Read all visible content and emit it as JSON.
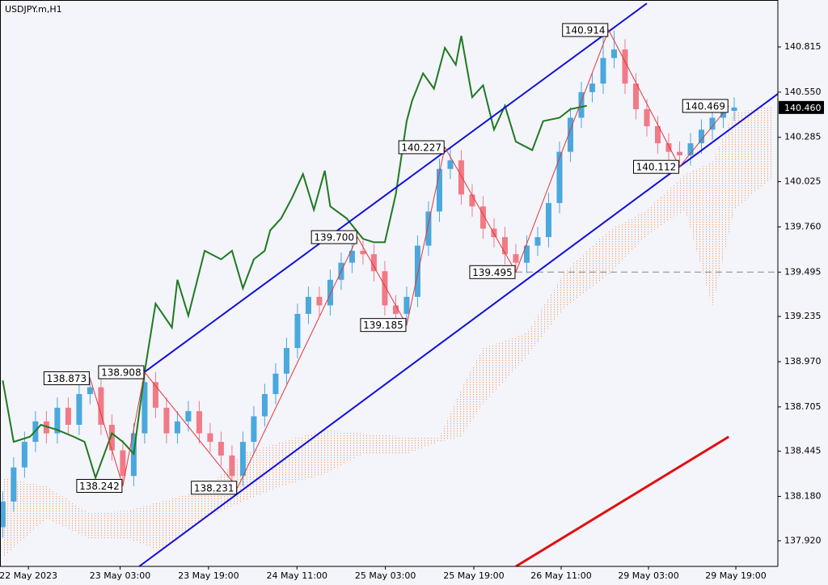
{
  "chart_data": {
    "type": "candlestick",
    "title": "USDJPY.m,H1",
    "up_color": "#4aa8dc",
    "down_color": "#f07a86",
    "xlim": [
      -0.5,
      142
    ],
    "ylim": [
      137.77,
      141.09
    ],
    "yticks": [
      140.815,
      {
        "value": 140.55,
        "label": "140.550"
      },
      140.285,
      140.025,
      {
        "value": 139.76,
        "label": "139.760"
      },
      139.495,
      139.235,
      {
        "value": 138.97,
        "label": "138.970"
      },
      138.705,
      138.445,
      {
        "value": 138.18,
        "label": "138.180"
      },
      {
        "value": 137.92,
        "label": "137.920"
      }
    ],
    "xticks": [
      {
        "value": 4.7,
        "label": "22 May 2023"
      },
      {
        "value": 21.5,
        "label": "23 May 03:00"
      },
      {
        "value": 37.7,
        "label": "23 May 19:00"
      },
      {
        "value": 53.9,
        "label": "24 May 11:00"
      },
      {
        "value": 70.1,
        "label": "25 May 03:00"
      },
      {
        "value": 86.3,
        "label": "25 May 19:00"
      },
      {
        "value": 102.3,
        "label": "26 May 11:00"
      },
      {
        "value": 118.3,
        "label": "29 May 03:00"
      },
      {
        "value": 134.3,
        "label": "29 May 19:00"
      }
    ],
    "x": [
      0,
      2,
      4,
      6,
      8,
      10,
      12,
      14,
      16,
      18,
      20,
      22,
      24,
      26,
      28,
      30,
      32,
      34,
      36,
      38,
      40,
      42,
      44,
      46,
      48,
      50,
      52,
      54,
      56,
      58,
      60,
      62,
      64,
      66,
      68,
      70,
      72,
      74,
      76,
      78,
      80,
      82,
      84,
      86,
      88,
      90,
      92,
      94,
      96,
      98,
      100,
      102,
      104,
      106,
      108,
      110,
      112,
      114,
      116,
      118,
      120,
      122,
      124,
      126,
      128,
      130,
      132,
      134
    ],
    "open": [
      138.0,
      138.15,
      138.35,
      138.5,
      138.62,
      138.55,
      138.7,
      138.6,
      138.78,
      138.82,
      138.6,
      138.45,
      138.3,
      138.55,
      138.85,
      138.7,
      138.55,
      138.62,
      138.68,
      138.55,
      138.5,
      138.42,
      138.3,
      138.5,
      138.65,
      138.78,
      138.9,
      139.05,
      139.25,
      139.35,
      139.3,
      139.45,
      139.55,
      139.62,
      139.6,
      139.5,
      139.3,
      139.25,
      139.35,
      139.65,
      139.85,
      140.1,
      140.15,
      139.95,
      139.88,
      139.75,
      139.7,
      139.6,
      139.55,
      139.65,
      139.7,
      139.9,
      140.2,
      140.4,
      140.55,
      140.6,
      140.75,
      140.8,
      140.6,
      140.45,
      140.35,
      140.25,
      140.2,
      140.18,
      140.25,
      140.33,
      140.4,
      140.44
    ],
    "high": [
      138.21,
      138.41,
      138.56,
      138.68,
      138.68,
      138.76,
      138.76,
      138.84,
      138.88,
      138.88,
      138.66,
      138.51,
      138.61,
      138.91,
      138.91,
      138.76,
      138.68,
      138.74,
      138.74,
      138.61,
      138.56,
      138.48,
      138.56,
      138.71,
      138.84,
      138.96,
      139.11,
      139.31,
      139.41,
      139.41,
      139.51,
      139.61,
      139.68,
      139.68,
      139.66,
      139.56,
      139.36,
      139.41,
      139.71,
      139.91,
      140.16,
      140.22,
      140.21,
      140.01,
      139.94,
      139.81,
      139.76,
      139.66,
      139.71,
      139.76,
      139.96,
      140.26,
      140.46,
      140.61,
      140.66,
      140.9,
      140.91,
      140.86,
      140.66,
      140.51,
      140.41,
      140.31,
      140.26,
      140.31,
      140.39,
      140.46,
      140.5,
      140.52
    ],
    "low": [
      137.94,
      138.09,
      138.29,
      138.44,
      138.49,
      138.49,
      138.54,
      138.54,
      138.72,
      138.54,
      138.39,
      138.24,
      138.24,
      138.49,
      138.64,
      138.49,
      138.49,
      138.56,
      138.49,
      138.44,
      138.36,
      138.24,
      138.24,
      138.44,
      138.59,
      138.72,
      138.84,
      138.99,
      139.19,
      139.24,
      139.24,
      139.39,
      139.49,
      139.54,
      139.44,
      139.24,
      139.19,
      139.19,
      139.29,
      139.59,
      139.79,
      140.04,
      139.89,
      139.82,
      139.69,
      139.64,
      139.54,
      139.5,
      139.49,
      139.59,
      139.64,
      139.84,
      140.14,
      140.34,
      140.49,
      140.54,
      140.69,
      140.54,
      140.39,
      140.29,
      140.19,
      140.14,
      140.12,
      140.12,
      140.19,
      140.27,
      140.34,
      140.38
    ],
    "close": [
      138.15,
      138.35,
      138.5,
      138.62,
      138.55,
      138.7,
      138.6,
      138.78,
      138.82,
      138.6,
      138.45,
      138.3,
      138.55,
      138.85,
      138.7,
      138.55,
      138.62,
      138.68,
      138.55,
      138.5,
      138.42,
      138.3,
      138.5,
      138.65,
      138.78,
      138.9,
      139.05,
      139.25,
      139.35,
      139.3,
      139.45,
      139.55,
      139.62,
      139.6,
      139.5,
      139.3,
      139.25,
      139.35,
      139.65,
      139.85,
      140.1,
      140.15,
      139.95,
      139.88,
      139.75,
      139.7,
      139.6,
      139.55,
      139.65,
      139.7,
      139.9,
      140.2,
      140.4,
      140.55,
      140.6,
      140.75,
      140.8,
      140.6,
      140.45,
      140.35,
      140.25,
      140.2,
      140.18,
      140.25,
      140.33,
      140.4,
      140.44,
      140.46
    ],
    "cloud": {
      "color": "#f0a060",
      "x": [
        0,
        8,
        16,
        23,
        29,
        37,
        44,
        51,
        59,
        66,
        74,
        80,
        84,
        88,
        96,
        103,
        111,
        118,
        125,
        130,
        134,
        141
      ],
      "upper": [
        138.29,
        138.24,
        138.08,
        138.1,
        138.15,
        138.22,
        138.43,
        138.5,
        138.57,
        138.55,
        138.53,
        138.53,
        138.81,
        139.05,
        139.14,
        139.5,
        139.74,
        139.86,
        140.07,
        140.14,
        140.43,
        140.47
      ],
      "lower": [
        137.82,
        138.05,
        137.93,
        137.93,
        137.86,
        138.05,
        138.15,
        138.24,
        138.31,
        138.43,
        138.43,
        138.5,
        138.53,
        138.72,
        139.0,
        139.29,
        139.48,
        139.71,
        139.86,
        139.29,
        139.86,
        140.05
      ]
    },
    "lines": [
      {
        "color": "#1e7a1e",
        "x": [
          0,
          2,
          5,
          7,
          10,
          13,
          15,
          17,
          20,
          22,
          24,
          26,
          28,
          31,
          32,
          34,
          37,
          40,
          42,
          44,
          46,
          48,
          49,
          51,
          53,
          55,
          57,
          59,
          60,
          63,
          66,
          68,
          70,
          72,
          74,
          75,
          77,
          79,
          81,
          83,
          84,
          86,
          88,
          90,
          92,
          94,
          97,
          99,
          102,
          104,
          107
        ],
        "values": [
          138.86,
          138.5,
          138.53,
          138.6,
          138.57,
          138.53,
          138.5,
          138.29,
          138.55,
          138.5,
          138.43,
          138.91,
          139.31,
          139.17,
          139.45,
          139.24,
          139.62,
          139.57,
          139.62,
          139.4,
          139.57,
          139.62,
          139.74,
          139.81,
          139.93,
          140.07,
          139.86,
          140.09,
          139.88,
          139.81,
          139.69,
          139.67,
          139.67,
          139.95,
          140.38,
          140.5,
          140.66,
          140.57,
          140.81,
          140.71,
          140.88,
          140.52,
          140.59,
          140.33,
          140.47,
          140.26,
          140.21,
          140.38,
          140.4,
          140.45,
          140.47
        ]
      },
      {
        "color": "#1010d8",
        "x": [
          26,
          118
        ],
        "values": [
          138.91,
          141.07
        ]
      },
      {
        "color": "#1010d8",
        "x": [
          25,
          142
        ],
        "values": [
          137.77,
          140.54
        ]
      },
      {
        "color": "#e01010",
        "x": [
          94,
          133
        ],
        "values": [
          137.77,
          138.53
        ]
      }
    ],
    "zigzag": {
      "color": "#e03838",
      "x": [
        16,
        22,
        26,
        43,
        65,
        74,
        81,
        94,
        111,
        124,
        133
      ],
      "values": [
        138.873,
        138.242,
        138.908,
        138.231,
        139.7,
        139.185,
        140.227,
        139.495,
        140.914,
        140.112,
        140.469
      ],
      "value_labels": [
        "138.873",
        "138.242",
        "138.908",
        "138.231",
        "139.700",
        "139.185",
        "140.227",
        "139.495",
        "140.914",
        "140.112",
        "140.469"
      ]
    },
    "level": 139.495,
    "current_price": {
      "value": 140.46,
      "label": "140.460"
    }
  }
}
